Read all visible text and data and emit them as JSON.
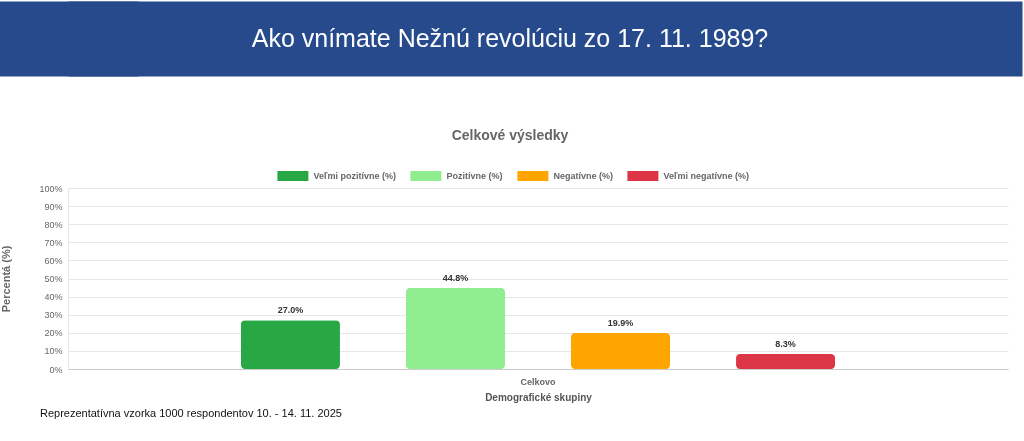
{
  "chart_data": {
    "type": "bar",
    "title": "Ako vnímate Nežnú revolúciu zo 17. 11. 1989?",
    "subtitle": "Celkové výsledky",
    "xlabel": "Demografické skupiny",
    "ylabel": "Percentá (%)",
    "categories": [
      "Celkovo"
    ],
    "series": [
      {
        "name": "Veľmi pozitívne (%)",
        "color": "#28a745",
        "values": [
          27.0
        ],
        "value_labels": [
          "27.0%"
        ]
      },
      {
        "name": "Pozitívne (%)",
        "color": "#90ee90",
        "values": [
          44.8
        ],
        "value_labels": [
          "44.8%"
        ]
      },
      {
        "name": "Negatívne (%)",
        "color": "#ffa500",
        "values": [
          19.9
        ],
        "value_labels": [
          "19.9%"
        ]
      },
      {
        "name": "Veľmi negatívne (%)",
        "color": "#dc3545",
        "values": [
          8.3
        ],
        "value_labels": [
          "8.3%"
        ]
      }
    ],
    "ylim": [
      0,
      100
    ],
    "yticks": [
      {
        "value": 0,
        "label": "0%"
      },
      {
        "value": 10,
        "label": "10%"
      },
      {
        "value": 20,
        "label": "20%"
      },
      {
        "value": 30,
        "label": "30%"
      },
      {
        "value": 40,
        "label": "40%"
      },
      {
        "value": 50,
        "label": "50%"
      },
      {
        "value": 60,
        "label": "60%"
      },
      {
        "value": 70,
        "label": "70%"
      },
      {
        "value": 80,
        "label": "80%"
      },
      {
        "value": 90,
        "label": "90%"
      },
      {
        "value": 100,
        "label": "100%"
      }
    ],
    "grid": "y",
    "legend": "top",
    "annotations": [
      "Reprezentatívna vzorka 1000 respondentov 10. - 14. 11. 2025"
    ]
  }
}
